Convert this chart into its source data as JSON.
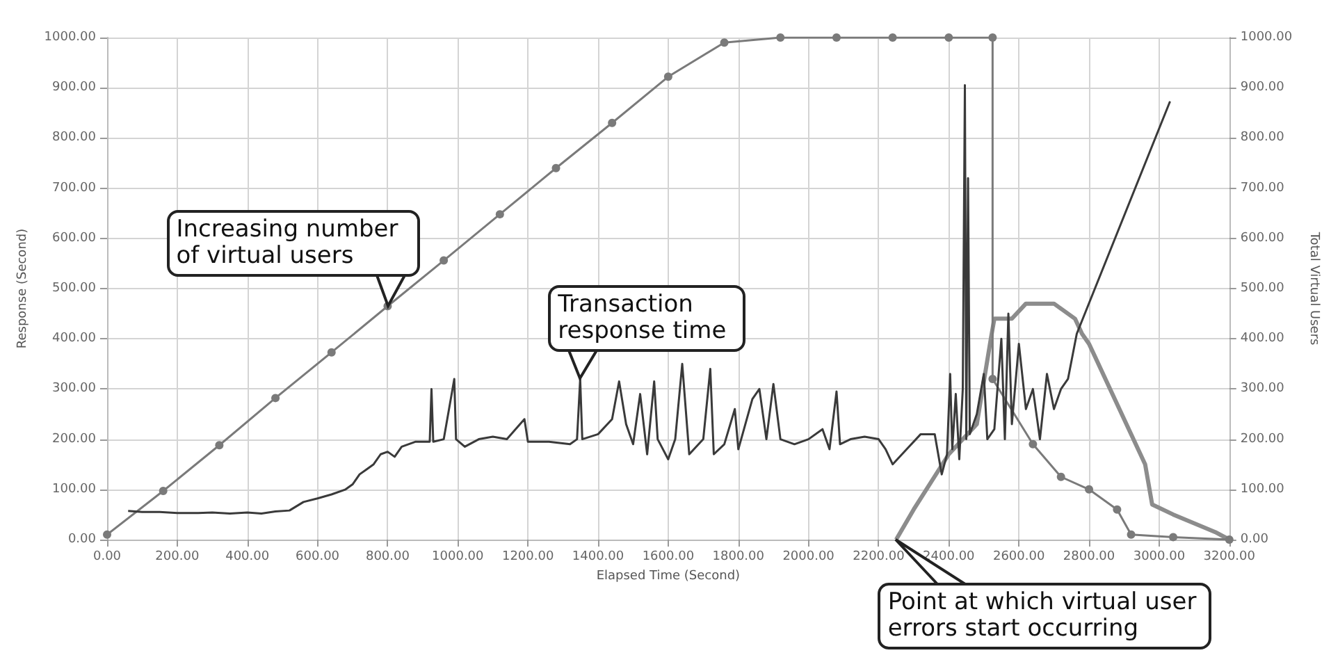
{
  "chart_data": {
    "type": "line",
    "xlabel": "Elapsed Time (Second)",
    "ylabel": "Response (Second)",
    "y2label": "Total Virtual Users",
    "xlim": [
      0,
      3200
    ],
    "xticks": [
      {
        "value": 0,
        "label": "0.00"
      },
      {
        "value": 200,
        "label": "200.00"
      },
      {
        "value": 400,
        "label": "400.00"
      },
      {
        "value": 600,
        "label": "600.00"
      },
      {
        "value": 800,
        "label": "800.00"
      },
      {
        "value": 1000,
        "label": "1000.00"
      },
      {
        "value": 1200,
        "label": "1200.00"
      },
      {
        "value": 1400,
        "label": "1400.00"
      },
      {
        "value": 1600,
        "label": "1600.00"
      },
      {
        "value": 1800,
        "label": "1800.00"
      },
      {
        "value": 2000,
        "label": "2000.00"
      },
      {
        "value": 2200,
        "label": "2200.00"
      },
      {
        "value": 2400,
        "label": "2400.00"
      },
      {
        "value": 2600,
        "label": "2600.00"
      },
      {
        "value": 2800,
        "label": "2800.00"
      },
      {
        "value": 3000,
        "label": "3000.00"
      },
      {
        "value": 3200,
        "label": "3200.00"
      }
    ],
    "ylim": [
      0,
      1000
    ],
    "yticks": [
      {
        "value": 0,
        "label": "0.00"
      },
      {
        "value": 100,
        "label": "100.00"
      },
      {
        "value": 200,
        "label": "200.00"
      },
      {
        "value": 300,
        "label": "300.00"
      },
      {
        "value": 400,
        "label": "400.00"
      },
      {
        "value": 500,
        "label": "500.00"
      },
      {
        "value": 600,
        "label": "600.00"
      },
      {
        "value": 700,
        "label": "700.00"
      },
      {
        "value": 800,
        "label": "800.00"
      },
      {
        "value": 900,
        "label": "900.00"
      },
      {
        "value": 1000,
        "label": "1000.00"
      }
    ],
    "y2lim": [
      0,
      1000
    ],
    "y2ticks": [
      {
        "value": 0,
        "label": "0.00"
      },
      {
        "value": 100,
        "label": "100.00"
      },
      {
        "value": 200,
        "label": "200.00"
      },
      {
        "value": 300,
        "label": "300.00"
      },
      {
        "value": 400,
        "label": "400.00"
      },
      {
        "value": 500,
        "label": "500.00"
      },
      {
        "value": 600,
        "label": "600.00"
      },
      {
        "value": 700,
        "label": "700.00"
      },
      {
        "value": 800,
        "label": "800.00"
      },
      {
        "value": 900,
        "label": "900.00"
      },
      {
        "value": 1000,
        "label": "1000.00"
      }
    ],
    "grid": true,
    "line_style": "solid",
    "series": [
      {
        "color": "#7a7a7a",
        "marker": "circle",
        "x": [
          0,
          160,
          320,
          480,
          640,
          800,
          960,
          1120,
          1280,
          1440,
          1600,
          1760,
          1920,
          2080,
          2240,
          2400,
          2525,
          2525,
          2640,
          2720,
          2800,
          2880,
          2920,
          3040,
          3200
        ],
        "values": [
          10,
          97,
          188,
          282,
          373,
          465,
          556,
          648,
          740,
          830,
          922,
          990,
          1000,
          1000,
          1000,
          1000,
          1000,
          320,
          190,
          125,
          100,
          60,
          10,
          5,
          0
        ]
      },
      {
        "color": "#3a3a3a",
        "marker": "none",
        "x": [
          60,
          100,
          150,
          200,
          260,
          300,
          350,
          400,
          440,
          480,
          520,
          560,
          600,
          640,
          680,
          700,
          720,
          740,
          760,
          780,
          800,
          820,
          840,
          880,
          920,
          925,
          930,
          960,
          985,
          990,
          995,
          1020,
          1060,
          1100,
          1140,
          1190,
          1200,
          1260,
          1320,
          1340,
          1349,
          1355,
          1400,
          1440,
          1460,
          1480,
          1500,
          1520,
          1540,
          1560,
          1570,
          1600,
          1620,
          1640,
          1660,
          1700,
          1720,
          1730,
          1760,
          1790,
          1800,
          1840,
          1860,
          1880,
          1900,
          1920,
          1960,
          2000,
          2040,
          2060,
          2080,
          2090,
          2120,
          2160,
          2200,
          2220,
          2240,
          2280,
          2320,
          2360,
          2380,
          2395,
          2404,
          2410,
          2420,
          2430,
          2440,
          2446,
          2450,
          2455,
          2460,
          2480,
          2500,
          2510,
          2530,
          2550,
          2560,
          2570,
          2580,
          2600,
          2620,
          2640,
          2660,
          2680,
          2700,
          2720,
          2740,
          2765,
          3031
        ],
        "values": [
          57,
          55,
          55,
          53,
          53,
          54,
          52,
          54,
          52,
          56,
          58,
          75,
          82,
          90,
          100,
          110,
          130,
          140,
          150,
          170,
          175,
          165,
          185,
          195,
          195,
          300,
          195,
          200,
          300,
          320,
          200,
          185,
          200,
          205,
          200,
          240,
          195,
          195,
          190,
          200,
          320,
          200,
          210,
          240,
          315,
          230,
          190,
          290,
          170,
          315,
          200,
          160,
          200,
          350,
          170,
          200,
          340,
          170,
          190,
          260,
          180,
          280,
          300,
          200,
          310,
          200,
          190,
          200,
          220,
          180,
          295,
          190,
          200,
          205,
          200,
          180,
          150,
          180,
          210,
          210,
          130,
          170,
          330,
          180,
          290,
          160,
          300,
          905,
          200,
          720,
          210,
          250,
          330,
          200,
          220,
          400,
          200,
          450,
          230,
          390,
          260,
          300,
          200,
          330,
          260,
          300,
          320,
          410,
          873
        ]
      },
      {
        "color": "#8c8c8c",
        "marker": "none",
        "x": [
          2250,
          2300,
          2400,
          2480,
          2520,
          2530,
          2580,
          2620,
          2700,
          2760,
          2780,
          2800,
          2960,
          2980,
          3040,
          3160,
          3200
        ],
        "values": [
          0,
          60,
          170,
          230,
          400,
          440,
          440,
          470,
          470,
          440,
          410,
          390,
          150,
          70,
          50,
          15,
          0
        ]
      }
    ],
    "annotations": [
      {
        "text": "Increasing number of virtual users",
        "x": 800,
        "y": 465
      },
      {
        "text": "Transaction response time",
        "x": 1349,
        "y": 320
      },
      {
        "text": "Point at which virtual user errors start occurring",
        "x": 2250,
        "y": 0
      }
    ]
  }
}
